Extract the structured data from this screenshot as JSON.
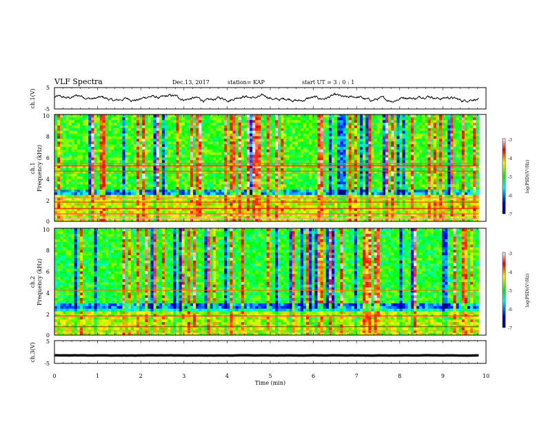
{
  "header": {
    "title": "VLF Spectra",
    "date": "Dec.13, 2017",
    "station": "station= KAP",
    "start": "start  UT  =   3 : 0  : 1"
  },
  "colors": {
    "spectrum": [
      "#000080",
      "#0000ff",
      "#00ffff",
      "#00ff00",
      "#ffff00",
      "#ff0000",
      "#ffffff"
    ]
  },
  "chart_data": [
    {
      "type": "line",
      "name": "ch1-waveform",
      "ylabel": "ch.1(V)",
      "ylim": [
        -5,
        5
      ],
      "yticks": [
        "5",
        "-5"
      ],
      "xlim": [
        0,
        10
      ],
      "x_extent_min": 9.83,
      "mean": 0,
      "amplitude": 1.2
    },
    {
      "type": "heatmap",
      "name": "ch1-spectrogram",
      "ylabel_top": "ch.1",
      "ylabel": "Frequency (kHz)",
      "ylim": [
        0,
        10
      ],
      "yticks": [
        "0",
        "2",
        "4",
        "6",
        "8",
        "10"
      ],
      "xlim": [
        0,
        10
      ],
      "x_extent_min": 9.83,
      "colorbar": {
        "label": "log(PSD)(V²/Hz)",
        "ticks": [
          "-3",
          "-4",
          "-5",
          "-6",
          "-7"
        ],
        "range": [
          -7,
          -3
        ]
      },
      "bands_khz": [
        {
          "f": 0.3,
          "level": -3.2
        },
        {
          "f": 0.7,
          "level": -3.4
        },
        {
          "f": 1.2,
          "level": -3.6
        },
        {
          "f": 1.8,
          "level": -3.5
        },
        {
          "f": 2.2,
          "level": -3.3
        },
        {
          "f": 4.7,
          "level": -3.8
        },
        {
          "f": 5.2,
          "level": -3.7
        },
        {
          "f": 5.4,
          "level": -3.4
        }
      ],
      "quiet_band_khz": [
        2.6,
        3.1
      ],
      "background_level": -4.9
    },
    {
      "type": "heatmap",
      "name": "ch2-spectrogram",
      "ylabel_top": "ch.2",
      "ylabel": "Frequency (kHz)",
      "ylim": [
        0,
        10
      ],
      "yticks": [
        "0",
        "2",
        "4",
        "6",
        "8",
        "10"
      ],
      "xlim": [
        0,
        10
      ],
      "x_extent_min": 9.83,
      "colorbar": {
        "label": "log(PSD)(V²/Hz)",
        "ticks": [
          "-3",
          "-4",
          "-5",
          "-6",
          "-7"
        ],
        "range": [
          -7,
          -3
        ]
      },
      "bands_khz": [
        {
          "f": 0.4,
          "level": -3.3
        },
        {
          "f": 0.8,
          "level": -3.6
        },
        {
          "f": 1.8,
          "level": -3.5
        },
        {
          "f": 4.2,
          "level": -3.9
        }
      ],
      "quiet_band_khz": [
        2.3,
        3.0
      ],
      "background_level": -5.0
    },
    {
      "type": "line",
      "name": "ch3-waveform",
      "ylabel": "ch.3(V)",
      "ylim": [
        -5,
        5
      ],
      "yticks": [
        "5",
        "-5"
      ],
      "xlim": [
        0,
        10
      ],
      "x_extent_min": 9.83,
      "mean": -1.5,
      "amplitude": 0.05
    }
  ],
  "xaxis": {
    "label": "Time (min)",
    "ticks": [
      "0",
      "1",
      "2",
      "3",
      "4",
      "5",
      "6",
      "7",
      "8",
      "9",
      "10"
    ],
    "range": [
      0,
      10
    ]
  }
}
